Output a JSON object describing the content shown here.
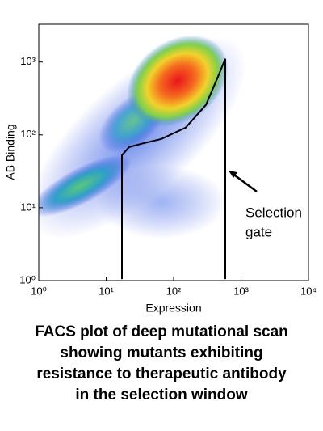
{
  "chart_data": {
    "type": "density",
    "xlabel": "Expression",
    "ylabel": "AB Binding",
    "xscale": "log",
    "yscale": "log",
    "xlim": [
      1,
      10000
    ],
    "ylim": [
      1,
      3300
    ],
    "xticks": [
      {
        "value": 1,
        "label": "10⁰"
      },
      {
        "value": 10,
        "label": "10¹"
      },
      {
        "value": 100,
        "label": "10²"
      },
      {
        "value": 1000,
        "label": "10³"
      },
      {
        "value": 10000,
        "label": "10⁴"
      }
    ],
    "yticks": [
      {
        "value": 1,
        "label": "10⁰"
      },
      {
        "value": 10,
        "label": "10¹"
      },
      {
        "value": 100,
        "label": "10²"
      },
      {
        "value": 1000,
        "label": "10³"
      }
    ],
    "series": [
      {
        "name": "Selection gate",
        "color": "#000000",
        "x": [
          17.1,
          17.1,
          21.9,
          33.2,
          66,
          151,
          301,
          456,
          584,
          584
        ],
        "values": [
          1.05,
          52.7,
          68,
          75.5,
          88,
          126,
          258,
          631,
          1107,
          1.05
        ]
      }
    ],
    "annotation": [
      "Selection",
      "gate"
    ],
    "caption": [
      "FACS plot of deep mutational scan",
      "showing mutants exhibiting",
      "resistance to therapeutic antibody",
      "in the selection window"
    ]
  }
}
